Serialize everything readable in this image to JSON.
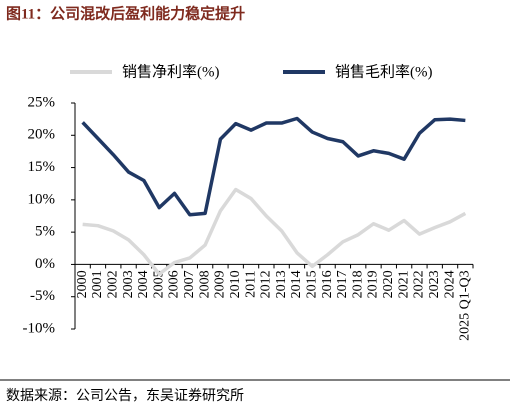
{
  "chart_data": {
    "type": "line",
    "title": "图11：公司混改后盈利能力稳定提升",
    "source": "数据来源：公司公告，东吴证券研究所",
    "categories": [
      "2000",
      "2001",
      "2002",
      "2003",
      "2004",
      "2005",
      "2006",
      "2007",
      "2008",
      "2009",
      "2010",
      "2011",
      "2012",
      "2013",
      "2014",
      "2015",
      "2016",
      "2017",
      "2018",
      "2019",
      "2020",
      "2021",
      "2022",
      "2023",
      "2024",
      "2025 Q1-Q3"
    ],
    "series": [
      {
        "name": "销售净利率(%)",
        "color": "#d9d9d9",
        "values": [
          6.2,
          6.0,
          5.2,
          3.8,
          1.5,
          -1.5,
          0.3,
          1.0,
          3.0,
          8.3,
          11.6,
          10.2,
          7.5,
          5.2,
          1.8,
          -0.3,
          1.5,
          3.5,
          4.6,
          6.3,
          5.3,
          6.8,
          4.7,
          5.7,
          6.6,
          7.9
        ]
      },
      {
        "name": "销售毛利率(%)",
        "color": "#203864",
        "values": [
          22.0,
          19.5,
          17.0,
          14.3,
          13.0,
          8.8,
          11.0,
          7.7,
          7.9,
          19.4,
          21.8,
          20.8,
          21.9,
          21.9,
          22.6,
          20.5,
          19.5,
          19.0,
          16.8,
          17.6,
          17.2,
          16.3,
          20.3,
          22.4,
          22.5,
          22.3
        ]
      }
    ],
    "ylim": [
      -10,
      25
    ],
    "yticks": [
      {
        "value": -10,
        "label": "-10%"
      },
      {
        "value": -5,
        "label": "-5%"
      },
      {
        "value": 0,
        "label": "0%"
      },
      {
        "value": 5,
        "label": "5%"
      },
      {
        "value": 10,
        "label": "10%"
      },
      {
        "value": 15,
        "label": "15%"
      },
      {
        "value": 20,
        "label": "20%"
      },
      {
        "value": 25,
        "label": "25%"
      }
    ],
    "grid": false
  }
}
